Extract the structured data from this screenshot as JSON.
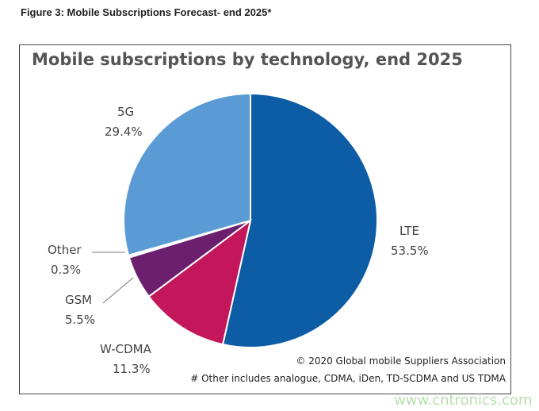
{
  "figure_caption": "Figure 3: Mobile Subscriptions Forecast- end 2025*",
  "chart_data": {
    "type": "pie",
    "title": "Mobile subscriptions by technology, end 2025",
    "slices": [
      {
        "label": "LTE",
        "value": 53.5,
        "value_label": "53.5%",
        "color": "#0d5ca6"
      },
      {
        "label": "W-CDMA",
        "value": 11.3,
        "value_label": "11.3%",
        "color": "#c4165a"
      },
      {
        "label": "GSM",
        "value": 5.5,
        "value_label": "5.5%",
        "color": "#6b1f6e"
      },
      {
        "label": "Other",
        "value": 0.3,
        "value_label": "0.3%",
        "color": "#ffffff"
      },
      {
        "label": "5G",
        "value": 29.4,
        "value_label": "29.4%",
        "color": "#5b9bd5"
      }
    ],
    "start": "top",
    "direction": "clockwise",
    "legend": "none"
  },
  "credit": "© 2020 Global mobile Suppliers Association",
  "footnote": "# Other includes analogue, CDMA, iDen, TD-SCDMA and US TDMA",
  "watermark": "www.cntronics.com"
}
